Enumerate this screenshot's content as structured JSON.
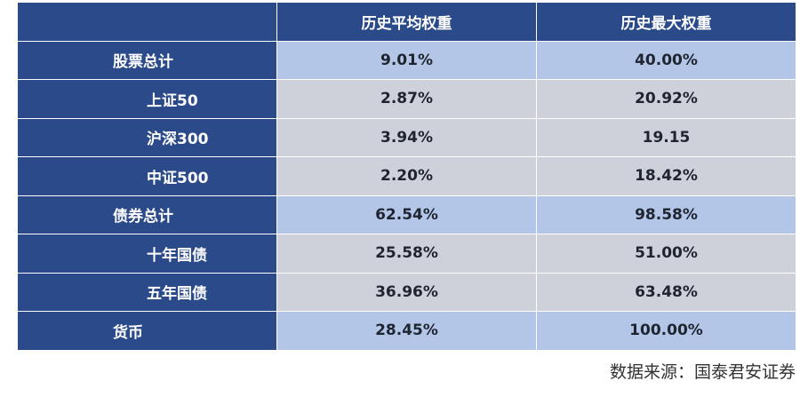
{
  "table": {
    "header": {
      "label": "",
      "avg": "历史平均权重",
      "max": "历史最大权重"
    },
    "rows": [
      {
        "kind": "total",
        "label": "股票总计",
        "avg": "9.01%",
        "max": "40.00%"
      },
      {
        "kind": "sub",
        "label": "上证50",
        "avg": "2.87%",
        "max": "20.92%"
      },
      {
        "kind": "sub",
        "label": "沪深300",
        "avg": "3.94%",
        "max": "19.15"
      },
      {
        "kind": "sub",
        "label": "中证500",
        "avg": "2.20%",
        "max": "18.42%"
      },
      {
        "kind": "total",
        "label": "债券总计",
        "avg": "62.54%",
        "max": "98.58%"
      },
      {
        "kind": "sub",
        "label": "十年国债",
        "avg": "25.58%",
        "max": "51.00%"
      },
      {
        "kind": "sub",
        "label": "五年国债",
        "avg": "36.96%",
        "max": "63.48%"
      },
      {
        "kind": "total",
        "label": "货币",
        "avg": "28.45%",
        "max": "100.00%"
      }
    ]
  },
  "source_note": "数据来源：国泰君安证券",
  "colors": {
    "header_bg": "#2b4a8a",
    "total_value_bg": "#b3c6e7",
    "sub_value_bg": "#cfd1da"
  }
}
